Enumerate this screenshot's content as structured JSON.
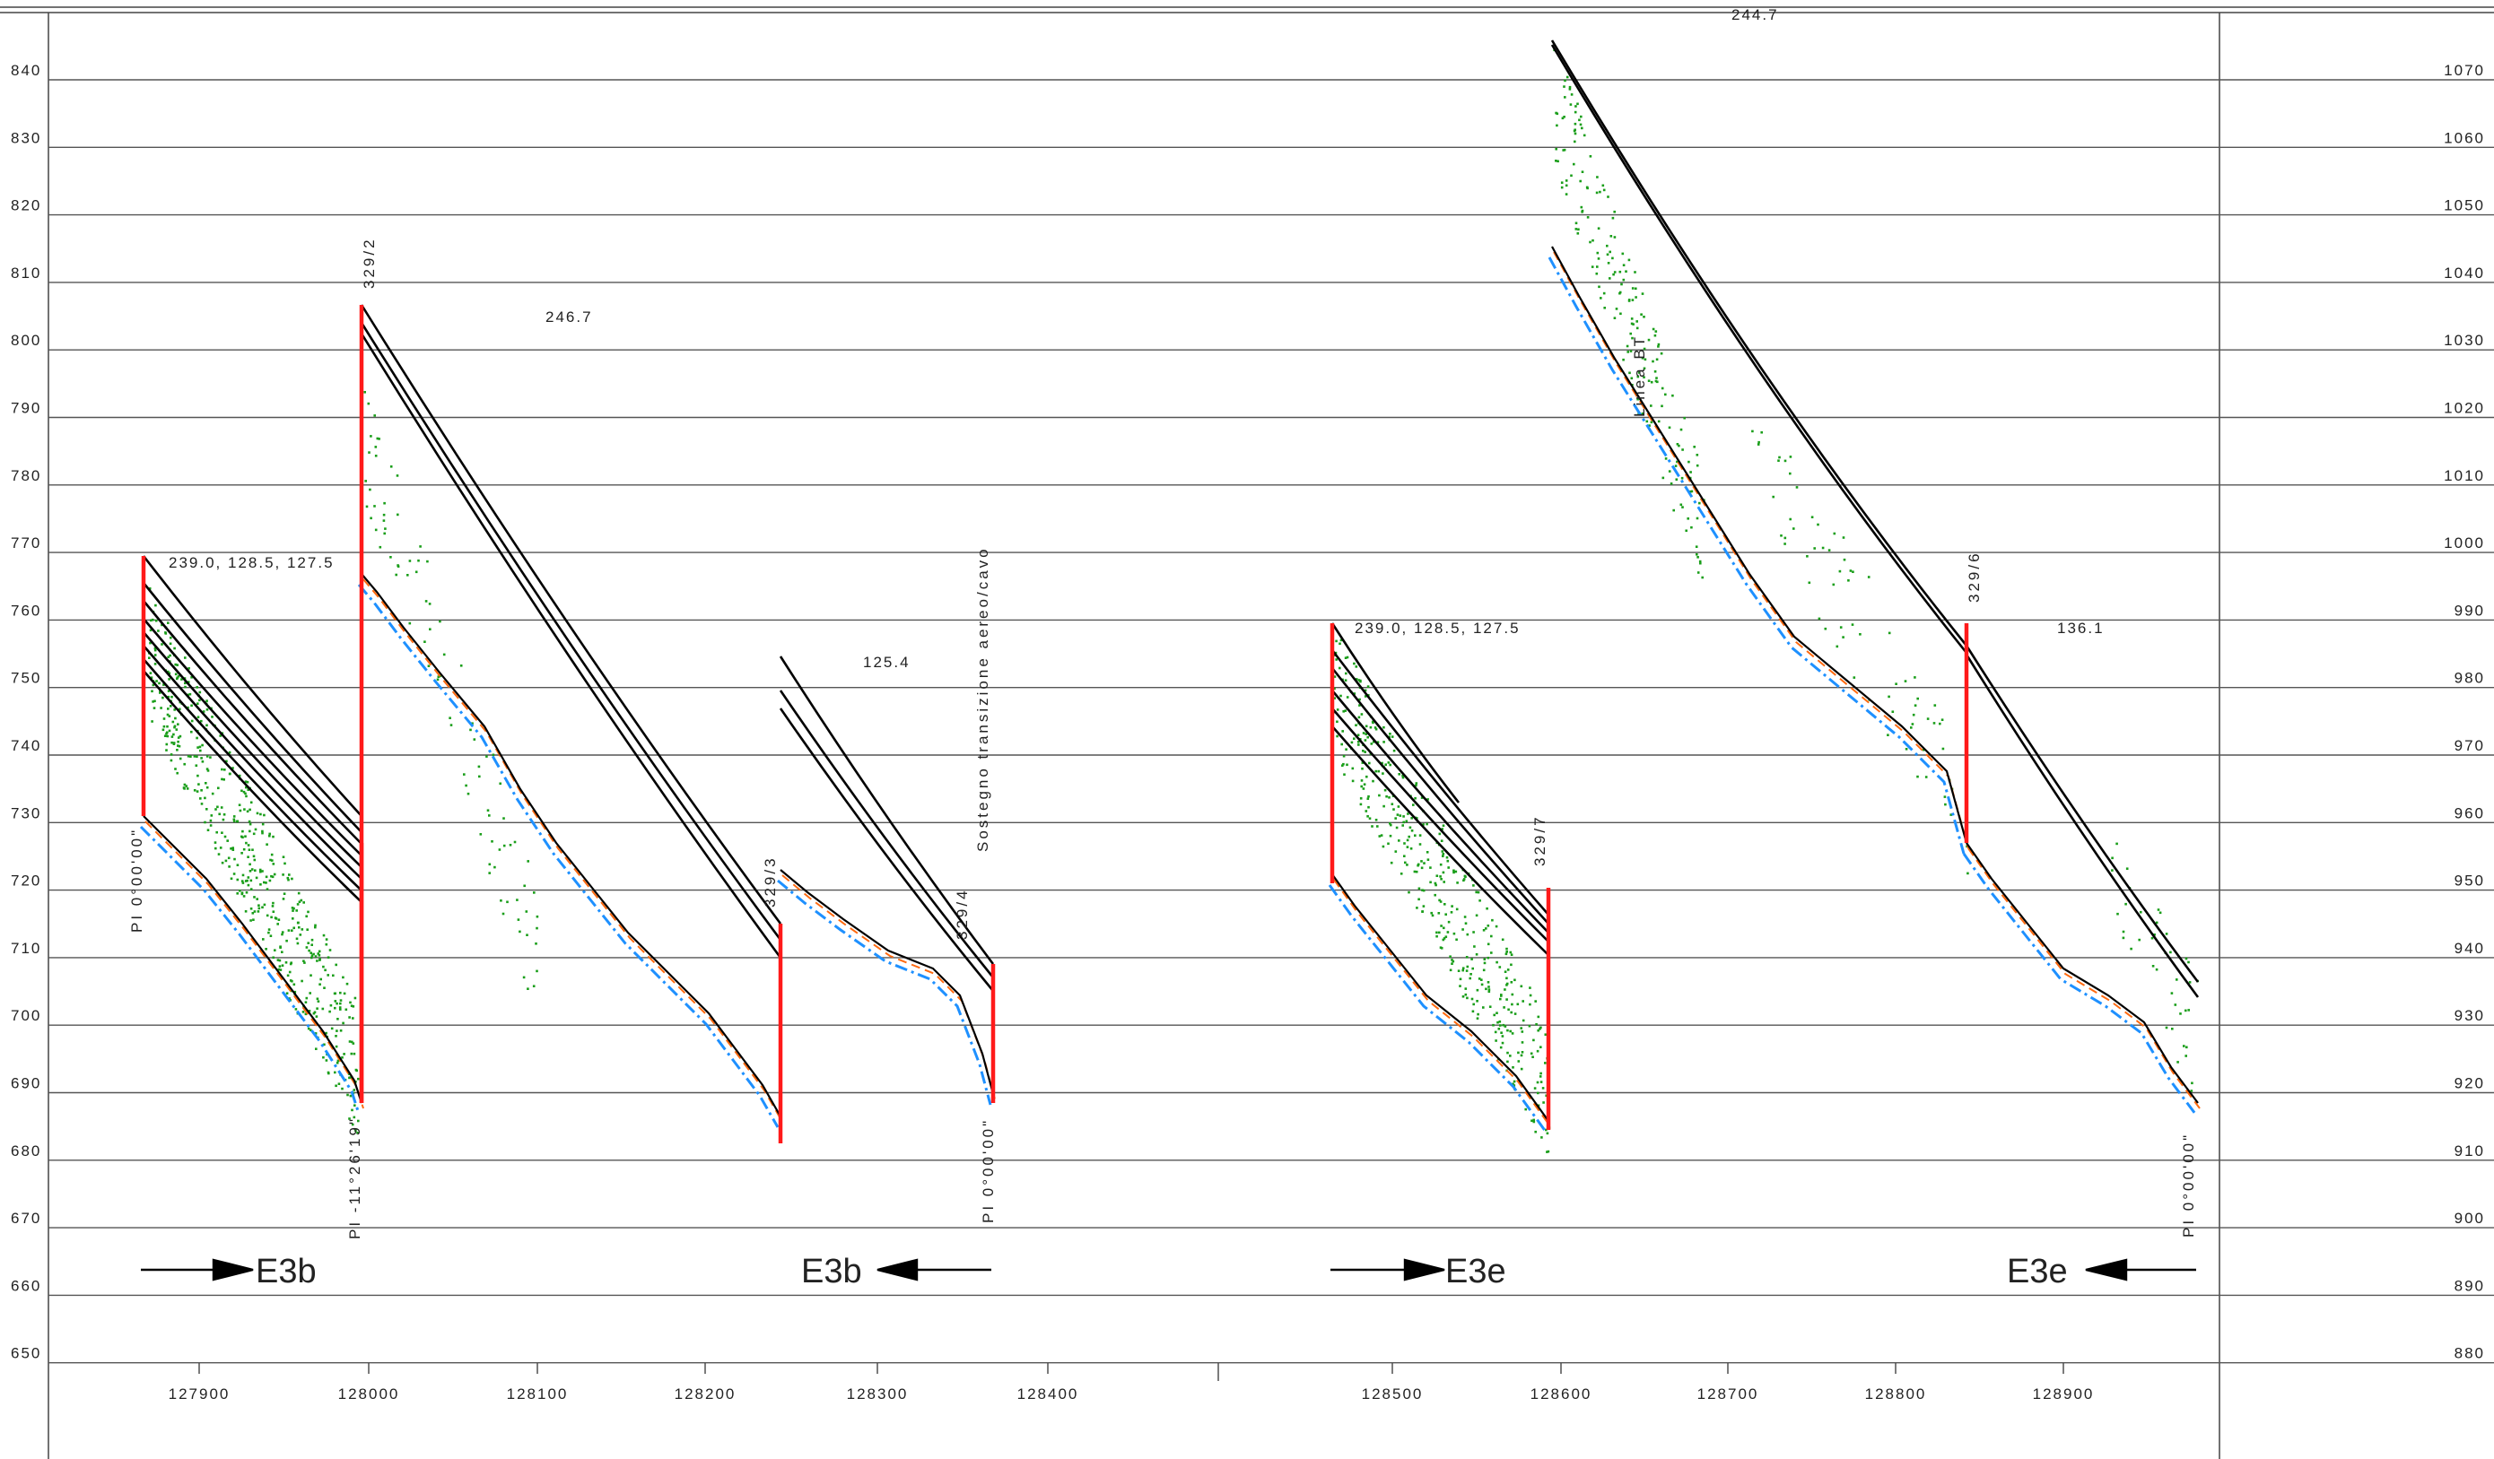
{
  "left_axis_labels": [
    "840",
    "830",
    "820",
    "810",
    "800",
    "790",
    "780",
    "770",
    "760",
    "750",
    "740",
    "730",
    "720",
    "710",
    "700",
    "690",
    "680",
    "670",
    "660",
    "650"
  ],
  "right_axis_labels": [
    "1070",
    "1060",
    "1050",
    "1040",
    "1030",
    "1020",
    "1010",
    "1000",
    "990",
    "980",
    "970",
    "960",
    "950",
    "940",
    "930",
    "920",
    "910",
    "900",
    "890",
    "880"
  ],
  "x_axis_labels": [
    "127900",
    "128000",
    "128100",
    "128200",
    "128300",
    "128400",
    "128500",
    "128600",
    "128700",
    "128800",
    "128900"
  ],
  "span_labels": [
    "239.0,   128.5,   127.5",
    "246.7",
    "125.4",
    "239.0,   128.5,   127.5",
    "244.7",
    "136.1"
  ],
  "support_labels": [
    "329/2",
    "329/3",
    "329/4",
    "329/7",
    "329/6"
  ],
  "angle_labels": [
    "PI  0°00'00\"",
    "PI  -11°26'19\"",
    "PI  0°00'00\"",
    "PI  0°00'00\""
  ],
  "annotations": [
    "Sostegno  transizione  aereo/cavo",
    "Linea BT"
  ],
  "section_labels": [
    "E3b",
    "E3b",
    "E3e",
    "E3e"
  ],
  "colors": {
    "grid": "#555555",
    "conductor": "#000000",
    "support": "#ff1a1a",
    "terrain": "#1e90ff",
    "ground_profile": "#000000",
    "offset_profile": "#ff6a10",
    "vegetation_points": "#1a9e1a"
  }
}
